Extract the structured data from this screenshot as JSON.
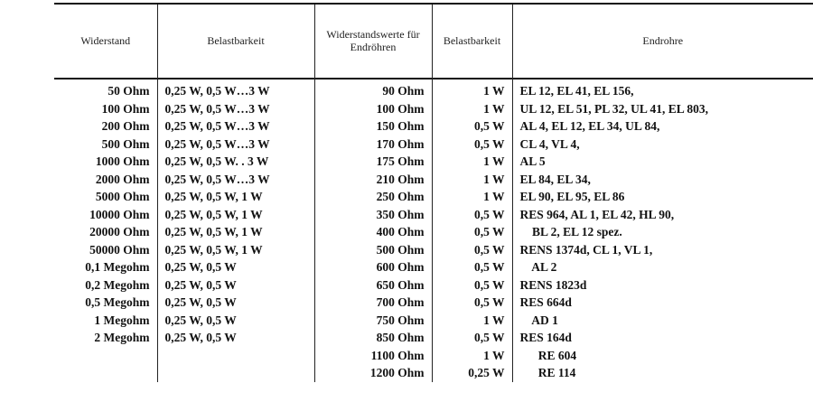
{
  "headers": [
    "Widerstand",
    "Belastbarkeit",
    "Widerstands­werte für Endröhren",
    "Belast­barkeit",
    "Endrohre"
  ],
  "rows": [
    [
      "50 Ohm",
      "0,25 W, 0,5 W…3 W",
      "90 Ohm",
      "1 W",
      "EL 12, EL 41, EL 156,"
    ],
    [
      "100 Ohm",
      "0,25 W, 0,5 W…3 W",
      "100 Ohm",
      "1 W",
      "UL 12, EL 51, PL 32, UL 41, EL 803,"
    ],
    [
      "200 Ohm",
      "0,25 W, 0,5 W…3 W",
      "150 Ohm",
      "0,5 W",
      "AL 4, EL 12, EL 34, UL 84,"
    ],
    [
      "500 Ohm",
      "0,25 W, 0,5 W…3 W",
      "170 Ohm",
      "0,5 W",
      "CL 4, VL 4,"
    ],
    [
      "1000 Ohm",
      "0,25 W, 0,5 W. . 3 W",
      "175 Ohm",
      "1 W",
      "AL 5"
    ],
    [
      "2000 Ohm",
      "0,25 W, 0,5 W…3 W",
      "210 Ohm",
      "1 W",
      "EL 84, EL 34,"
    ],
    [
      "5000 Ohm",
      "0,25 W, 0,5 W, 1 W",
      "250 Ohm",
      "1 W",
      "EL 90, EL 95, EL 86"
    ],
    [
      "10000 Ohm",
      "0,25 W, 0,5 W, 1 W",
      "350 Ohm",
      "0,5 W",
      "RES 964, AL 1, EL 42, HL 90,"
    ],
    [
      "20000 Ohm",
      "0,25 W, 0,5 W, 1 W",
      "400 Ohm",
      "0,5 W",
      "    BL 2, EL 12 spez."
    ],
    [
      "50000 Ohm",
      "0,25 W, 0,5 W, 1 W",
      "500 Ohm",
      "0,5 W",
      "RENS 1374d, CL 1, VL 1,"
    ],
    [
      "0,1 Megohm",
      "0,25 W, 0,5 W",
      "600 Ohm",
      "0,5 W",
      "    AL 2"
    ],
    [
      "0,2 Megohm",
      "0,25 W, 0,5 W",
      "650 Ohm",
      "0,5 W",
      "RENS 1823d"
    ],
    [
      "0,5 Megohm",
      "0,25 W, 0,5 W",
      "700 Ohm",
      "0,5 W",
      "RES 664d"
    ],
    [
      "1 Megohm",
      "0,25 W, 0,5 W",
      "750 Ohm",
      "1 W",
      "    AD 1"
    ],
    [
      "2 Megohm",
      "0,25 W, 0,5 W",
      "850 Ohm",
      "0,5 W",
      "RES 164d"
    ],
    [
      "",
      "",
      "1100 Ohm",
      "1 W",
      "      RE 604"
    ],
    [
      "",
      "",
      "1200 Ohm",
      "0,25 W",
      "      RE 114"
    ]
  ]
}
